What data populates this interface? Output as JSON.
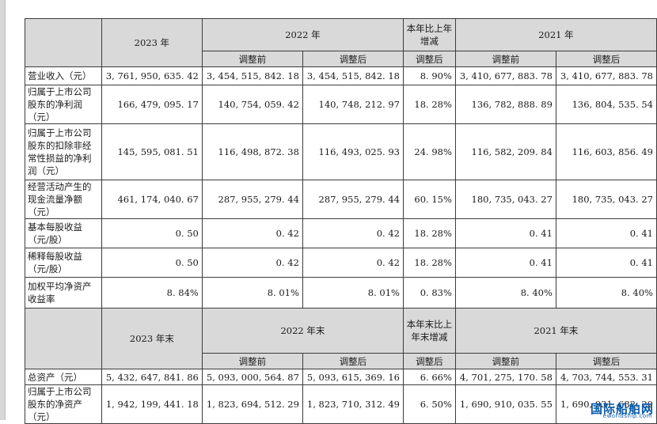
{
  "header1": {
    "year_2023": "2023 年",
    "year_2022": "2022 年",
    "change": "本年比上年增减",
    "year_2021": "2021 年",
    "before": "调整前",
    "after": "调整后"
  },
  "rows1": [
    {
      "label": "营业收入（元）",
      "v2023": "3, 761, 950, 635. 42",
      "v2022b": "3, 454, 515, 842. 18",
      "v2022a": "3, 454, 515, 842. 18",
      "chg": "8. 90%",
      "v2021b": "3, 410, 677, 883. 78",
      "v2021a": "3, 410, 677, 883. 78"
    },
    {
      "label": "归属于上市公司股东的净利润（元）",
      "v2023": "166, 479, 095. 17",
      "v2022b": "140, 754, 059. 42",
      "v2022a": "140, 748, 212. 97",
      "chg": "18. 28%",
      "v2021b": "136, 782, 888. 89",
      "v2021a": "136, 804, 535. 54"
    },
    {
      "label": "归属于上市公司股东的扣除非经常性损益的净利润（元）",
      "v2023": "145, 595, 081. 51",
      "v2022b": "116, 498, 872. 38",
      "v2022a": "116, 493, 025. 93",
      "chg": "24. 98%",
      "v2021b": "116, 582, 209. 84",
      "v2021a": "116, 603, 856. 49"
    },
    {
      "label": "经营活动产生的现金流量净额（元）",
      "v2023": "461, 174, 040. 67",
      "v2022b": "287, 955, 279. 44",
      "v2022a": "287, 955, 279. 44",
      "chg": "60. 15%",
      "v2021b": "180, 735, 043. 27",
      "v2021a": "180, 735, 043. 27"
    },
    {
      "label": "基本每股收益（元/股）",
      "v2023": "0. 50",
      "v2022b": "0. 42",
      "v2022a": "0. 42",
      "chg": "18. 28%",
      "v2021b": "0. 41",
      "v2021a": "0. 41"
    },
    {
      "label": "稀释每股收益（元/股）",
      "v2023": "0. 50",
      "v2022b": "0. 42",
      "v2022a": "0. 42",
      "chg": "18. 28%",
      "v2021b": "0. 41",
      "v2021a": "0. 41"
    },
    {
      "label": "加权平均净资产收益率",
      "v2023": "8. 84%",
      "v2022b": "8. 01%",
      "v2022a": "8. 01%",
      "chg": "0. 83%",
      "v2021b": "8. 40%",
      "v2021a": "8. 40%"
    }
  ],
  "header2": {
    "year_2023": "2023 年末",
    "year_2022": "2022 年末",
    "change": "本年末比上年末增减",
    "year_2021": "2021 年末",
    "before": "调整前",
    "after": "调整后"
  },
  "rows2": [
    {
      "label": "总资产（元）",
      "v2023": "5, 432, 647, 841. 86",
      "v2022b": "5, 093, 000, 564. 87",
      "v2022a": "5, 093, 615, 369. 16",
      "chg": "6. 66%",
      "v2021b": "4, 701, 275, 170. 58",
      "v2021a": "4, 703, 744, 553. 31"
    },
    {
      "label": "归属于上市公司股东的净资产（元）",
      "v2023": "1, 942, 199, 441. 18",
      "v2022b": "1, 823, 694, 512. 29",
      "v2022a": "1, 823, 710, 312. 49",
      "chg": "6. 50%",
      "v2021b": "1, 690, 910, 035. 55",
      "v2021a": "1, 690, 931, 682. 20"
    }
  ],
  "watermark": {
    "cn": "国际船舶网",
    "en": "eworldship.com"
  },
  "colors": {
    "header_bg": "#d9d9d9",
    "border": "#3c3c3c",
    "watermark": "#0a5aa8"
  }
}
